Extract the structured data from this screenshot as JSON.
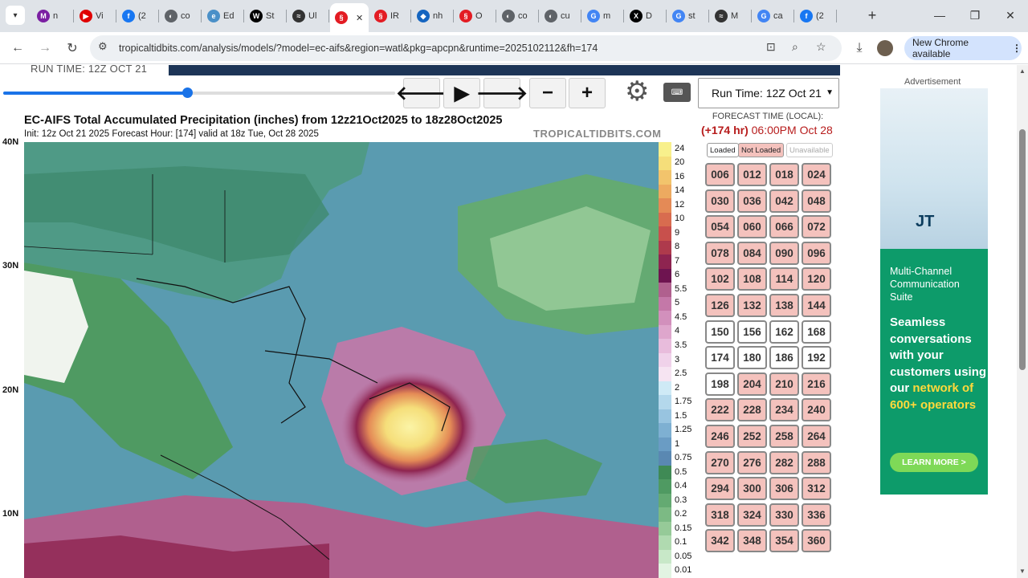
{
  "browser": {
    "tabs": [
      {
        "label": "n",
        "icon": "multicolor-icon",
        "color": "#7b1fa2"
      },
      {
        "label": "Vi",
        "icon": "youtube-icon",
        "color": "#e00000"
      },
      {
        "label": "(2",
        "icon": "facebook-icon",
        "color": "#1877f2"
      },
      {
        "label": "co",
        "icon": "globe-icon",
        "color": "#5f6368"
      },
      {
        "label": "Ed",
        "icon": "edge-icon",
        "color": "#4a90c8"
      },
      {
        "label": "St",
        "icon": "wikipedia-icon",
        "color": "#000000"
      },
      {
        "label": "Ul",
        "icon": "tropical-icon",
        "color": "#333333"
      },
      {
        "label": "",
        "icon": "storm-icon",
        "color": "#e31c23",
        "active": true
      },
      {
        "label": "IR",
        "icon": "storm-icon",
        "color": "#e31c23"
      },
      {
        "label": "nh",
        "icon": "shield-icon",
        "color": "#1565c0"
      },
      {
        "label": "O",
        "icon": "storm-icon",
        "color": "#e31c23"
      },
      {
        "label": "co",
        "icon": "globe-icon",
        "color": "#5f6368"
      },
      {
        "label": "cu",
        "icon": "globe-icon",
        "color": "#5f6368"
      },
      {
        "label": "m",
        "icon": "google-icon",
        "color": "#4285f4"
      },
      {
        "label": "D",
        "icon": "x-icon",
        "color": "#000000"
      },
      {
        "label": "st",
        "icon": "google-icon",
        "color": "#4285f4"
      },
      {
        "label": "M",
        "icon": "tropical-icon",
        "color": "#333333"
      },
      {
        "label": "ca",
        "icon": "google-icon",
        "color": "#4285f4"
      },
      {
        "label": "(2",
        "icon": "facebook-icon",
        "color": "#1877f2"
      }
    ],
    "url": "tropicaltidbits.com/analysis/models/?model=ec-aifs&region=watl&pkg=apcpn&runtime=2025102112&fh=174",
    "new_chrome_label": "New Chrome available"
  },
  "page": {
    "run_time_top": "RUN TIME: 12Z OCT 21",
    "slider_fraction": 0.47,
    "run_select": "Run Time: 12Z Oct 21",
    "map_title": "EC-AIFS Total Accumulated Precipitation (inches) from 12z21Oct2025 to 18z28Oct2025",
    "map_subtitle": "Init: 12z Oct 21 2025   Forecast Hour: [174]   valid at 18z Tue, Oct 28 2025",
    "watermark": "TROPICALTIDBITS.COM",
    "lat_labels": [
      "40N",
      "30N",
      "20N",
      "10N"
    ],
    "legend_values": [
      "24",
      "20",
      "16",
      "14",
      "12",
      "10",
      "9",
      "8",
      "7",
      "6",
      "5.5",
      "5",
      "4.5",
      "4",
      "3.5",
      "3",
      "2.5",
      "2",
      "1.75",
      "1.5",
      "1.25",
      "1",
      "0.75",
      "0.5",
      "0.4",
      "0.3",
      "0.2",
      "0.15",
      "0.1",
      "0.05",
      "0.01"
    ],
    "legend_colors": [
      "#f8f08c",
      "#f5de7a",
      "#f2c46c",
      "#edaa60",
      "#e48a56",
      "#d86c4f",
      "#c8504c",
      "#ae3a4c",
      "#8e2450",
      "#6e1450",
      "#b0608e",
      "#c478a8",
      "#d290bc",
      "#dea6cc",
      "#e8bcdc",
      "#f0d2ea",
      "#f6e4f2",
      "#cfeaf6",
      "#b4d8ec",
      "#98c4e0",
      "#7eb0d2",
      "#6a9cc4",
      "#5a88b2",
      "#3f8a55",
      "#4f9a62",
      "#64aa72",
      "#7cba84",
      "#96ca98",
      "#b0dab0",
      "#c8e8c8",
      "#e2f4e2"
    ],
    "forecast_header": "FORECAST TIME (LOCAL):",
    "forecast_hour": "(+174 hr)",
    "forecast_time": "06:00PM Oct 28",
    "status_loaded": "Loaded",
    "status_not_loaded": "Not Loaded",
    "status_unavailable": "Unavailable",
    "hours": [
      {
        "h": "006",
        "loaded": false
      },
      {
        "h": "012",
        "loaded": false
      },
      {
        "h": "018",
        "loaded": false
      },
      {
        "h": "024",
        "loaded": false
      },
      {
        "h": "030",
        "loaded": false
      },
      {
        "h": "036",
        "loaded": false
      },
      {
        "h": "042",
        "loaded": false
      },
      {
        "h": "048",
        "loaded": false
      },
      {
        "h": "054",
        "loaded": false
      },
      {
        "h": "060",
        "loaded": false
      },
      {
        "h": "066",
        "loaded": false
      },
      {
        "h": "072",
        "loaded": false
      },
      {
        "h": "078",
        "loaded": false
      },
      {
        "h": "084",
        "loaded": false
      },
      {
        "h": "090",
        "loaded": false
      },
      {
        "h": "096",
        "loaded": false
      },
      {
        "h": "102",
        "loaded": false
      },
      {
        "h": "108",
        "loaded": false
      },
      {
        "h": "114",
        "loaded": false
      },
      {
        "h": "120",
        "loaded": false
      },
      {
        "h": "126",
        "loaded": false
      },
      {
        "h": "132",
        "loaded": false
      },
      {
        "h": "138",
        "loaded": false
      },
      {
        "h": "144",
        "loaded": false
      },
      {
        "h": "150",
        "loaded": true
      },
      {
        "h": "156",
        "loaded": true
      },
      {
        "h": "162",
        "loaded": true
      },
      {
        "h": "168",
        "loaded": true
      },
      {
        "h": "174",
        "loaded": true
      },
      {
        "h": "180",
        "loaded": true
      },
      {
        "h": "186",
        "loaded": true
      },
      {
        "h": "192",
        "loaded": true
      },
      {
        "h": "198",
        "loaded": true
      },
      {
        "h": "204",
        "loaded": false
      },
      {
        "h": "210",
        "loaded": false
      },
      {
        "h": "216",
        "loaded": false
      },
      {
        "h": "222",
        "loaded": false
      },
      {
        "h": "228",
        "loaded": false
      },
      {
        "h": "234",
        "loaded": false
      },
      {
        "h": "240",
        "loaded": false
      },
      {
        "h": "246",
        "loaded": false
      },
      {
        "h": "252",
        "loaded": false
      },
      {
        "h": "258",
        "loaded": false
      },
      {
        "h": "264",
        "loaded": false
      },
      {
        "h": "270",
        "loaded": false
      },
      {
        "h": "276",
        "loaded": false
      },
      {
        "h": "282",
        "loaded": false
      },
      {
        "h": "288",
        "loaded": false
      },
      {
        "h": "294",
        "loaded": false
      },
      {
        "h": "300",
        "loaded": false
      },
      {
        "h": "306",
        "loaded": false
      },
      {
        "h": "312",
        "loaded": false
      },
      {
        "h": "318",
        "loaded": false
      },
      {
        "h": "324",
        "loaded": false
      },
      {
        "h": "330",
        "loaded": false
      },
      {
        "h": "336",
        "loaded": false
      },
      {
        "h": "342",
        "loaded": false
      },
      {
        "h": "348",
        "loaded": false
      },
      {
        "h": "354",
        "loaded": false
      },
      {
        "h": "360",
        "loaded": false
      }
    ]
  },
  "ad": {
    "label": "Advertisement",
    "logo": "JT",
    "headline": "Multi-Channel Communication Suite",
    "body_prefix": "Seamless conversations with your customers using our ",
    "body_highlight": "network of 600+ operators",
    "cta": "LEARN MORE >"
  }
}
